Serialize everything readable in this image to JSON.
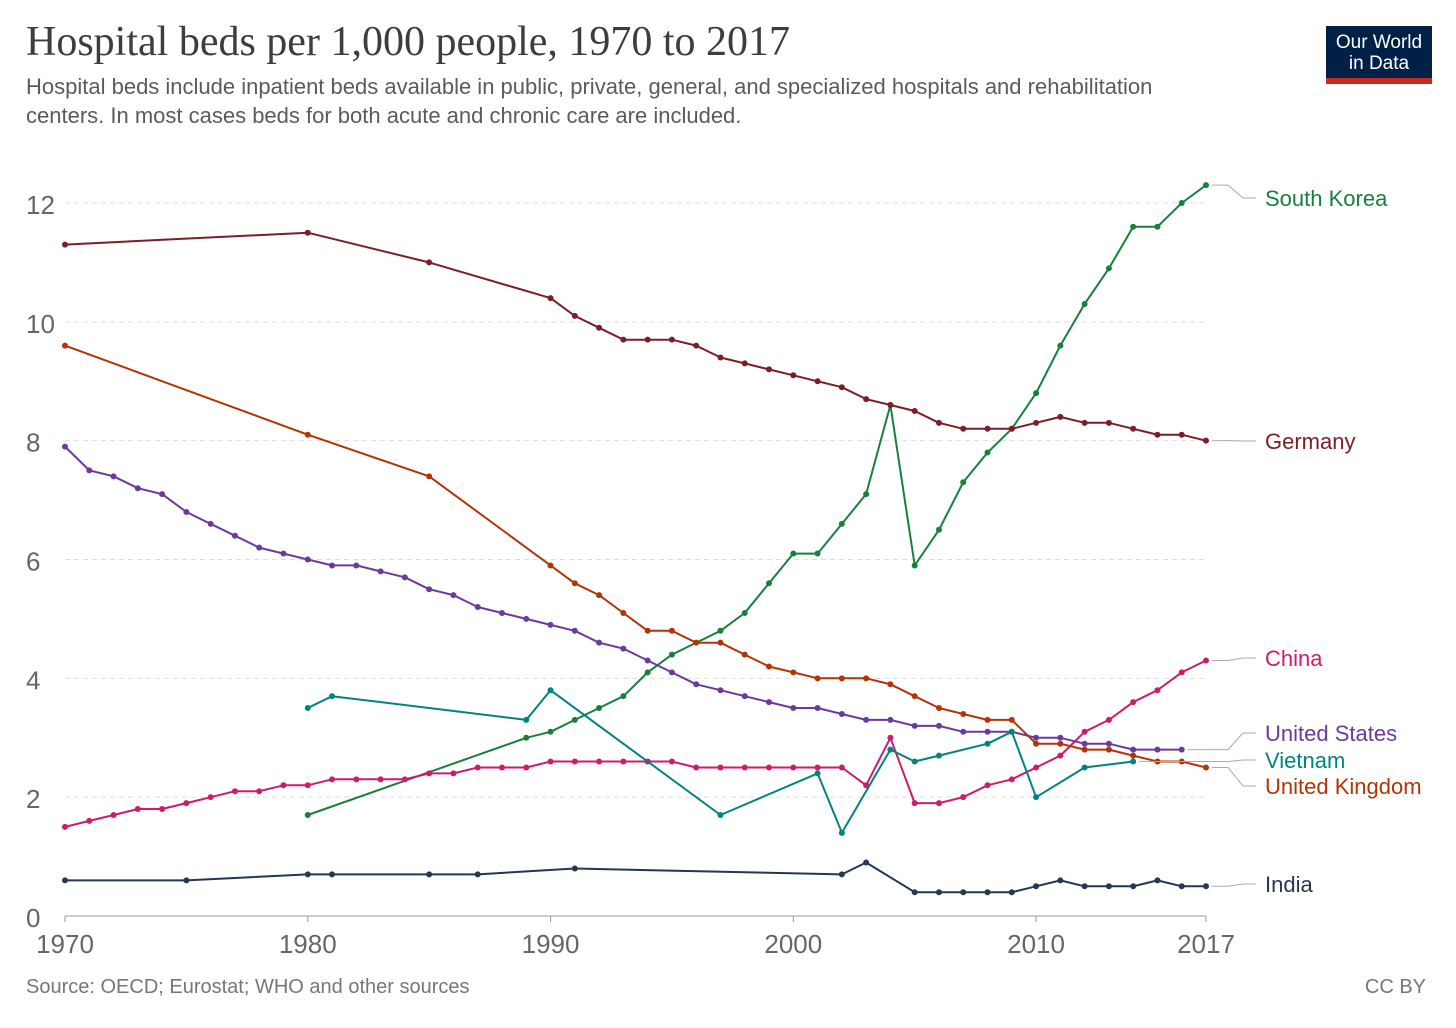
{
  "header": {
    "title": "Hospital beds per 1,000 people, 1970 to 2017",
    "subtitle": "Hospital beds include inpatient beds available in public, private, general, and specialized hospitals and rehabilitation centers. In most cases beds for both acute and chronic care are included."
  },
  "logo": {
    "line1": "Our World",
    "line2": "in Data",
    "bg_color": "#002147",
    "accent_color": "#ce261e"
  },
  "footer": {
    "source": "Source: OECD; Eurostat; WHO and other sources",
    "license": "CC BY"
  },
  "chart_data": {
    "type": "line",
    "title": "Hospital beds per 1,000 people, 1970 to 2017",
    "xlabel": "",
    "ylabel": "",
    "xlim": [
      1970,
      2017
    ],
    "ylim": [
      0,
      12.3
    ],
    "x_ticks": [
      1970,
      1980,
      1990,
      2000,
      2010,
      2017
    ],
    "y_ticks": [
      0,
      2,
      4,
      6,
      8,
      10,
      12
    ],
    "grid": "horizontal dashed",
    "legend": "right, labels at line ends",
    "series": [
      {
        "name": "South Korea",
        "color": "#18803d",
        "x": [
          1980,
          1989,
          1990,
          1991,
          1992,
          1993,
          1994,
          1995,
          1997,
          1998,
          1999,
          2000,
          2001,
          2002,
          2003,
          2004,
          2005,
          2006,
          2007,
          2008,
          2009,
          2010,
          2011,
          2012,
          2013,
          2014,
          2015,
          2016,
          2017
        ],
        "y": [
          1.7,
          3.0,
          3.1,
          3.3,
          3.5,
          3.7,
          4.1,
          4.4,
          4.8,
          5.1,
          5.6,
          6.1,
          6.1,
          6.6,
          7.1,
          8.6,
          5.9,
          6.5,
          7.3,
          7.8,
          8.2,
          8.8,
          9.6,
          10.3,
          10.9,
          11.6,
          11.6,
          12.0,
          12.3
        ]
      },
      {
        "name": "Germany",
        "color": "#7b1e28",
        "x": [
          1970,
          1980,
          1985,
          1990,
          1991,
          1992,
          1993,
          1994,
          1995,
          1996,
          1997,
          1998,
          1999,
          2000,
          2001,
          2002,
          2003,
          2004,
          2005,
          2006,
          2007,
          2008,
          2009,
          2010,
          2011,
          2012,
          2013,
          2014,
          2015,
          2016,
          2017
        ],
        "y": [
          11.3,
          11.5,
          11.0,
          10.4,
          10.1,
          9.9,
          9.7,
          9.7,
          9.7,
          9.6,
          9.4,
          9.3,
          9.2,
          9.1,
          9.0,
          8.9,
          8.7,
          8.6,
          8.5,
          8.3,
          8.2,
          8.2,
          8.2,
          8.3,
          8.4,
          8.3,
          8.3,
          8.2,
          8.1,
          8.1,
          8.0
        ]
      },
      {
        "name": "China",
        "color": "#cc1c6e",
        "x": [
          1970,
          1971,
          1972,
          1973,
          1974,
          1975,
          1976,
          1977,
          1978,
          1979,
          1980,
          1981,
          1982,
          1983,
          1984,
          1985,
          1986,
          1987,
          1988,
          1989,
          1990,
          1991,
          1992,
          1993,
          1994,
          1995,
          1996,
          1997,
          1998,
          1999,
          2000,
          2001,
          2002,
          2003,
          2004,
          2005,
          2006,
          2007,
          2008,
          2009,
          2010,
          2011,
          2012,
          2013,
          2014,
          2015,
          2016,
          2017
        ],
        "y": [
          1.5,
          1.6,
          1.7,
          1.8,
          1.8,
          1.9,
          2.0,
          2.1,
          2.1,
          2.2,
          2.2,
          2.3,
          2.3,
          2.3,
          2.3,
          2.4,
          2.4,
          2.5,
          2.5,
          2.5,
          2.6,
          2.6,
          2.6,
          2.6,
          2.6,
          2.6,
          2.5,
          2.5,
          2.5,
          2.5,
          2.5,
          2.5,
          2.5,
          2.2,
          3.0,
          1.9,
          1.9,
          2.0,
          2.2,
          2.3,
          2.5,
          2.7,
          3.1,
          3.3,
          3.6,
          3.8,
          4.1,
          4.3
        ]
      },
      {
        "name": "United States",
        "color": "#6d3a9c",
        "x": [
          1970,
          1971,
          1972,
          1973,
          1974,
          1975,
          1976,
          1977,
          1978,
          1979,
          1980,
          1981,
          1982,
          1983,
          1984,
          1985,
          1986,
          1987,
          1988,
          1989,
          1990,
          1991,
          1992,
          1993,
          1994,
          1995,
          1996,
          1997,
          1998,
          1999,
          2000,
          2001,
          2002,
          2003,
          2004,
          2005,
          2006,
          2007,
          2008,
          2009,
          2010,
          2011,
          2012,
          2013,
          2014,
          2015,
          2016
        ],
        "y": [
          7.9,
          7.5,
          7.4,
          7.2,
          7.1,
          6.8,
          6.6,
          6.4,
          6.2,
          6.1,
          6.0,
          5.9,
          5.9,
          5.8,
          5.7,
          5.5,
          5.4,
          5.2,
          5.1,
          5.0,
          4.9,
          4.8,
          4.6,
          4.5,
          4.3,
          4.1,
          3.9,
          3.8,
          3.7,
          3.6,
          3.5,
          3.5,
          3.4,
          3.3,
          3.3,
          3.2,
          3.2,
          3.1,
          3.1,
          3.1,
          3.0,
          3.0,
          2.9,
          2.9,
          2.8,
          2.8,
          2.8
        ]
      },
      {
        "name": "Vietnam",
        "color": "#00847e",
        "x": [
          1980,
          1981,
          1989,
          1990,
          1997,
          2001,
          2002,
          2004,
          2005,
          2006,
          2008,
          2009,
          2010,
          2012,
          2014
        ],
        "y": [
          3.5,
          3.7,
          3.3,
          3.8,
          1.7,
          2.4,
          1.4,
          2.8,
          2.6,
          2.7,
          2.9,
          3.1,
          2.0,
          2.5,
          2.6
        ]
      },
      {
        "name": "United Kingdom",
        "color": "#b13507",
        "x": [
          1970,
          1980,
          1985,
          1990,
          1991,
          1992,
          1993,
          1994,
          1995,
          1996,
          1997,
          1998,
          1999,
          2000,
          2001,
          2002,
          2003,
          2004,
          2005,
          2006,
          2007,
          2008,
          2009,
          2010,
          2011,
          2012,
          2013,
          2014,
          2015,
          2016,
          2017
        ],
        "y": [
          9.6,
          8.1,
          7.4,
          5.9,
          5.6,
          5.4,
          5.1,
          4.8,
          4.8,
          4.6,
          4.6,
          4.4,
          4.2,
          4.1,
          4.0,
          4.0,
          4.0,
          3.9,
          3.7,
          3.5,
          3.4,
          3.3,
          3.3,
          2.9,
          2.9,
          2.8,
          2.8,
          2.7,
          2.6,
          2.6,
          2.5
        ]
      },
      {
        "name": "India",
        "color": "#253752",
        "x": [
          1970,
          1975,
          1980,
          1981,
          1985,
          1987,
          1991,
          2002,
          2003,
          2005,
          2006,
          2007,
          2008,
          2009,
          2010,
          2011,
          2012,
          2013,
          2014,
          2015,
          2016,
          2017
        ],
        "y": [
          0.6,
          0.6,
          0.7,
          0.7,
          0.7,
          0.7,
          0.8,
          0.7,
          0.9,
          0.4,
          0.4,
          0.4,
          0.4,
          0.4,
          0.5,
          0.6,
          0.5,
          0.5,
          0.5,
          0.6,
          0.5,
          0.5
        ]
      }
    ],
    "end_labels": [
      {
        "name": "South Korea",
        "color": "#18803d"
      },
      {
        "name": "Germany",
        "color": "#7b1e28"
      },
      {
        "name": "China",
        "color": "#cc1c6e"
      },
      {
        "name": "United States",
        "color": "#6d3a9c"
      },
      {
        "name": "Vietnam",
        "color": "#00847e"
      },
      {
        "name": "United Kingdom",
        "color": "#b13507"
      },
      {
        "name": "India",
        "color": "#253752"
      }
    ]
  }
}
